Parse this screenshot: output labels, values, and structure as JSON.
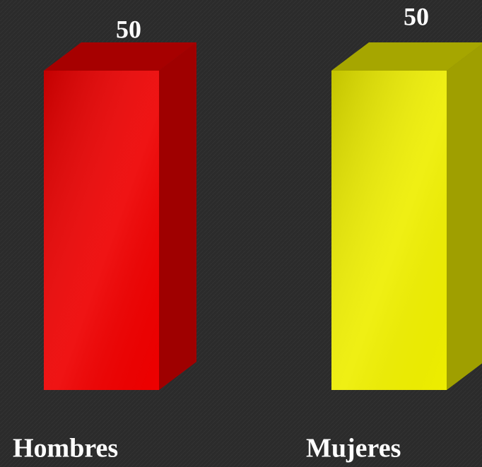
{
  "chart_data": {
    "type": "bar3d",
    "categories": [
      "Hombres",
      "Mujeres"
    ],
    "values": [
      50,
      50
    ],
    "colors": [
      "#ee0000",
      "#eeee00"
    ],
    "ylim": [
      0,
      50
    ]
  }
}
